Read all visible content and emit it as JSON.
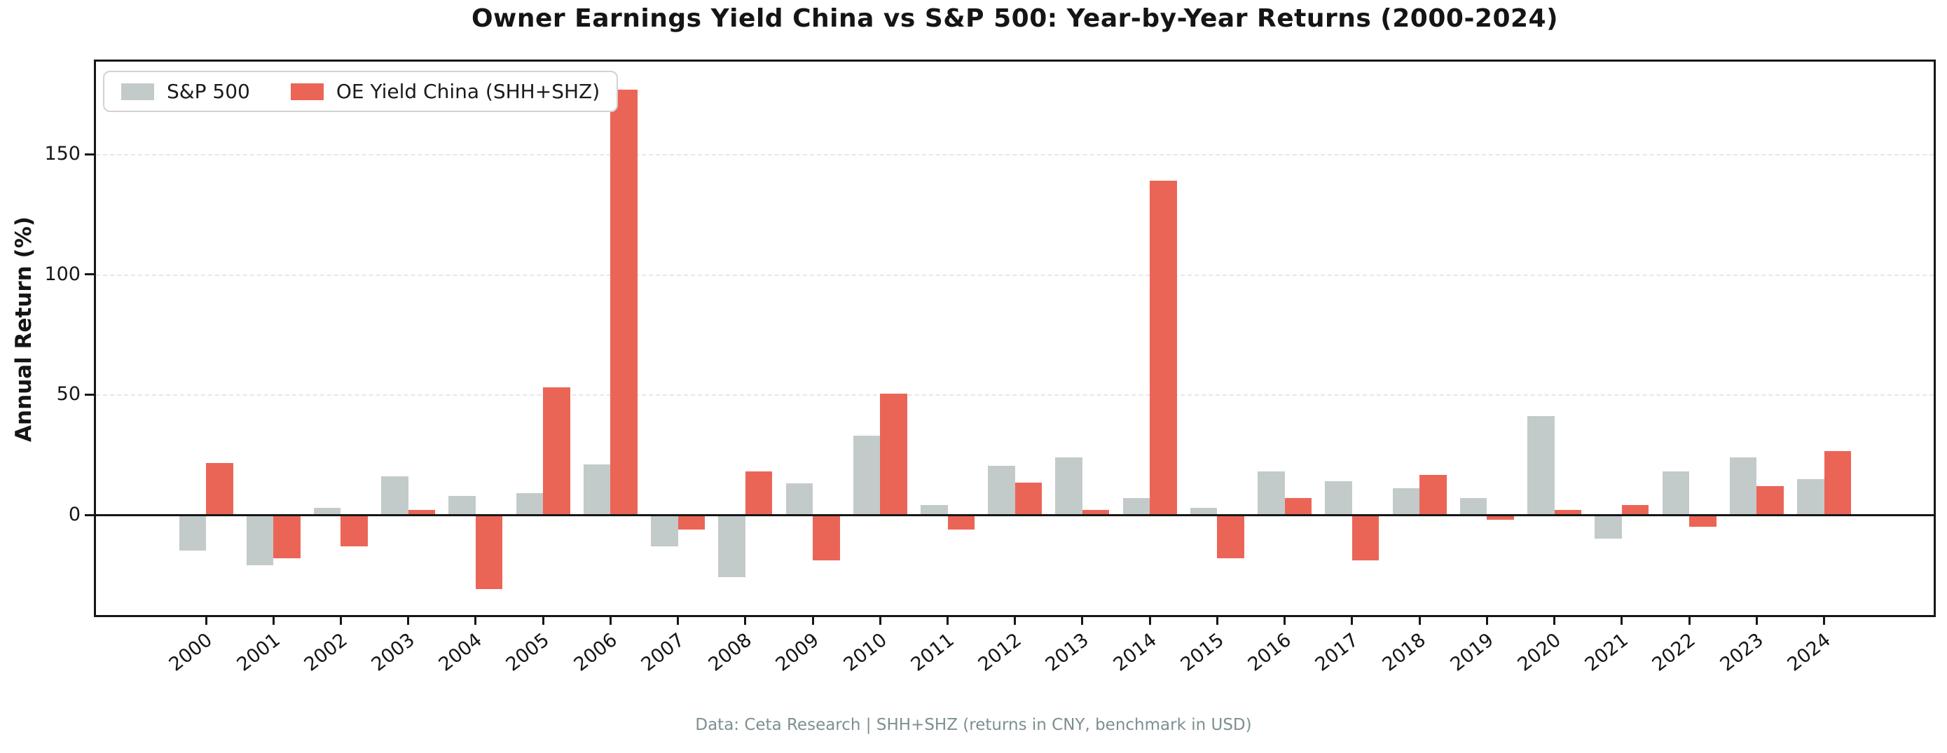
{
  "title": "Owner Earnings Yield China vs S&P 500: Year-by-Year Returns (2000-2024)",
  "footer": "Data: Ceta Research | SHH+SHZ (returns in CNY, benchmark in USD)",
  "colors": {
    "axis": "#161616",
    "grid": "#e7e7e7",
    "legend_border": "#d2d2d2",
    "footer_text": "#7d8f91",
    "background": "#ffffff"
  },
  "chart_data": {
    "type": "bar",
    "title": "Owner Earnings Yield China vs S&P 500: Year-by-Year Returns (2000-2024)",
    "xlabel": "",
    "ylabel": "Annual Return (%)",
    "categories": [
      "2000",
      "2001",
      "2002",
      "2003",
      "2004",
      "2005",
      "2006",
      "2007",
      "2008",
      "2009",
      "2010",
      "2011",
      "2012",
      "2013",
      "2014",
      "2015",
      "2016",
      "2017",
      "2018",
      "2019",
      "2020",
      "2021",
      "2022",
      "2023",
      "2024"
    ],
    "series": [
      {
        "name": "S&P 500",
        "color": "#c3cbca",
        "values": [
          -15,
          -21,
          3,
          16,
          8,
          9,
          21,
          -13,
          -26,
          13,
          33,
          4,
          20.5,
          24,
          7,
          3,
          18,
          14,
          11,
          7,
          41,
          -10,
          18,
          24,
          15
        ]
      },
      {
        "name": "OE Yield China (SHH+SHZ)",
        "color": "#eb6557",
        "values": [
          21.5,
          -18,
          -13,
          2,
          -31,
          53,
          177,
          -6,
          18,
          -19,
          50.5,
          -6,
          13.5,
          2,
          139,
          -18,
          7,
          -19,
          16.5,
          -2,
          2,
          4,
          -5,
          12,
          26.5
        ]
      }
    ],
    "yticks": [
      0,
      50,
      100,
      150
    ],
    "ylim": [
      -42,
      189
    ],
    "grid": "horizontal-dashed",
    "legend_position": "upper-left",
    "bar_orientation": "vertical-grouped"
  }
}
